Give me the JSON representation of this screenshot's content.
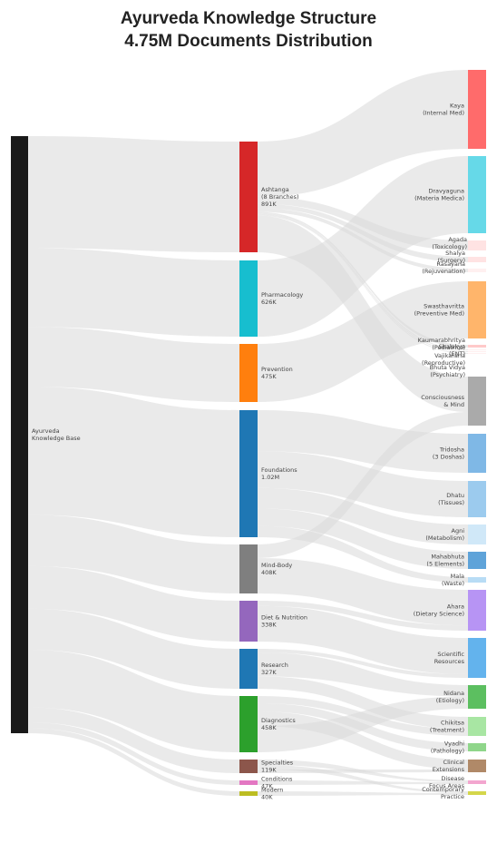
{
  "title": [
    "Ayurveda Knowledge Structure",
    "4.75M Documents Distribution"
  ],
  "root": {
    "label": [
      "Ayurveda",
      "Knowledge Base"
    ],
    "color": "#1a1a1a"
  },
  "categories": [
    {
      "id": "ashtanga",
      "label": [
        "Ashtanga",
        "(8 Branches)",
        "891K"
      ],
      "value": 891,
      "color": "#d62728"
    },
    {
      "id": "pharmacology",
      "label": [
        "Pharmacology",
        "626K"
      ],
      "value": 626,
      "color": "#17becf"
    },
    {
      "id": "prevention",
      "label": [
        "Prevention",
        "475K"
      ],
      "value": 475,
      "color": "#ff7f0e"
    },
    {
      "id": "foundations",
      "label": [
        "Foundations",
        "1.02M"
      ],
      "value": 1020,
      "color": "#1f77b4"
    },
    {
      "id": "mindbody",
      "label": [
        "Mind-Body",
        "408K"
      ],
      "value": 408,
      "color": "#7f7f7f"
    },
    {
      "id": "diet",
      "label": [
        "Diet & Nutrition",
        "338K"
      ],
      "value": 338,
      "color": "#9467bd"
    },
    {
      "id": "research",
      "label": [
        "Research",
        "327K"
      ],
      "value": 327,
      "color": "#1f77b4"
    },
    {
      "id": "diagnostics",
      "label": [
        "Diagnostics",
        "458K"
      ],
      "value": 458,
      "color": "#2ca02c"
    },
    {
      "id": "specialties",
      "label": [
        "Specialties",
        "119K"
      ],
      "value": 119,
      "color": "#8c564b"
    },
    {
      "id": "conditions",
      "label": [
        "Conditions",
        "47K"
      ],
      "value": 47,
      "color": "#e377c2"
    },
    {
      "id": "modern",
      "label": [
        "Modern",
        "40K"
      ],
      "value": 40,
      "color": "#bcbd22"
    }
  ],
  "topics": [
    {
      "id": "kaya",
      "label": [
        "Kaya",
        "(Internal Med)"
      ],
      "color": "#ff6b6b"
    },
    {
      "id": "dravyaguna",
      "label": [
        "Dravyaguna",
        "(Materia Medica)"
      ],
      "color": "#66d9e8"
    },
    {
      "id": "agada",
      "label": [
        "Agada",
        "(Toxicology)"
      ],
      "color": "#ffe3e3"
    },
    {
      "id": "shalya",
      "label": [
        "Shalya",
        "(Surgery)"
      ],
      "color": "#ffe3e3"
    },
    {
      "id": "rasayana",
      "label": [
        "Rasayana",
        "(Rejuvenation)"
      ],
      "color": "#fff0f0"
    },
    {
      "id": "swasthavritta",
      "label": [
        "Swasthavritta",
        "(Preventive Med)"
      ],
      "color": "#ffb56b"
    },
    {
      "id": "kaumarabhritya",
      "label": [
        "Kaumarabhritya",
        "(Pediatrics)"
      ],
      "color": "#ffc9c9"
    },
    {
      "id": "shalakya",
      "label": [
        "Shalakya",
        "(ENT)"
      ],
      "color": "#fff0f0"
    },
    {
      "id": "vajikarana",
      "label": [
        "Vajikarana",
        "(Reproductive)"
      ],
      "color": "#fff0f0"
    },
    {
      "id": "bhuta",
      "label": [
        "Bhuta Vidya",
        "(Psychiatry)"
      ],
      "color": "#fff0f0"
    },
    {
      "id": "consciousness",
      "label": [
        "Consciousness",
        "& Mind"
      ],
      "color": "#aaaaaa"
    },
    {
      "id": "tridosha",
      "label": [
        "Tridosha",
        "(3 Doshas)"
      ],
      "color": "#7fb8e6"
    },
    {
      "id": "dhatu",
      "label": [
        "Dhatu",
        "(Tissues)"
      ],
      "color": "#9ccbee"
    },
    {
      "id": "agni",
      "label": [
        "Agni",
        "(Metabolism)"
      ],
      "color": "#d0e8f8"
    },
    {
      "id": "mahabhuta",
      "label": [
        "Mahabhuta",
        "(5 Elements)"
      ],
      "color": "#5ea3d9"
    },
    {
      "id": "mala",
      "label": [
        "Mala",
        "(Waste)"
      ],
      "color": "#b8dcf5"
    },
    {
      "id": "ahara",
      "label": [
        "Ahara",
        "(Dietary Science)"
      ],
      "color": "#b794f4"
    },
    {
      "id": "scientific",
      "label": [
        "Scientific",
        "Resources"
      ],
      "color": "#63b3ed"
    },
    {
      "id": "nidana",
      "label": [
        "Nidana",
        "(Etiology)"
      ],
      "color": "#5cbf60"
    },
    {
      "id": "chikitsa",
      "label": [
        "Chikitsa",
        "(Treatment)"
      ],
      "color": "#a8e6a3"
    },
    {
      "id": "vyadhi",
      "label": [
        "Vyadhi",
        "(Pathology)"
      ],
      "color": "#8fd68a"
    },
    {
      "id": "clinical",
      "label": [
        "Clinical",
        "Extensions"
      ],
      "color": "#b08968"
    },
    {
      "id": "disease",
      "label": [
        "Disease",
        "Focus Areas"
      ],
      "color": "#f3a6cf"
    },
    {
      "id": "contemporary",
      "label": [
        "Contemporary",
        "Practice"
      ],
      "color": "#d4d64a"
    }
  ],
  "flows": [
    {
      "source": "ashtanga",
      "target": "kaya",
      "value": 445
    },
    {
      "source": "ashtanga",
      "target": "agada",
      "value": 56
    },
    {
      "source": "ashtanga",
      "target": "shalya",
      "value": 35
    },
    {
      "source": "ashtanga",
      "target": "rasayana",
      "value": 30
    },
    {
      "source": "ashtanga",
      "target": "kaumarabhritya",
      "value": 12
    },
    {
      "source": "ashtanga",
      "target": "shalakya",
      "value": 8
    },
    {
      "source": "ashtanga",
      "target": "vajikarana",
      "value": 6
    },
    {
      "source": "ashtanga",
      "target": "bhuta",
      "value": 4
    },
    {
      "source": "ashtanga",
      "target": "consciousness",
      "value": 295
    },
    {
      "source": "pharmacology",
      "target": "dravyaguna",
      "value": 626
    },
    {
      "source": "prevention",
      "target": "swasthavritta",
      "value": 475
    },
    {
      "source": "foundations",
      "target": "tridosha",
      "value": 330
    },
    {
      "source": "foundations",
      "target": "dhatu",
      "value": 295
    },
    {
      "source": "foundations",
      "target": "agni",
      "value": 165
    },
    {
      "source": "foundations",
      "target": "mahabhuta",
      "value": 140
    },
    {
      "source": "foundations",
      "target": "mala",
      "value": 90
    },
    {
      "source": "mindbody",
      "target": "consciousness",
      "value": 113
    },
    {
      "source": "mindbody",
      "target": "ahara",
      "value": 295
    },
    {
      "source": "diet",
      "target": "ahara",
      "value": 43
    },
    {
      "source": "diet",
      "target": "scientific",
      "value": 295
    },
    {
      "source": "research",
      "target": "scientific",
      "value": 30
    },
    {
      "source": "research",
      "target": "nidana",
      "value": 195
    },
    {
      "source": "research",
      "target": "chikitsa",
      "value": 102
    },
    {
      "source": "diagnostics",
      "target": "chikitsa",
      "value": 58
    },
    {
      "source": "diagnostics",
      "target": "vyadhi",
      "value": 68
    },
    {
      "source": "diagnostics",
      "target": "clinical",
      "value": 119
    },
    {
      "source": "diagnostics",
      "target": "nidana",
      "value": 213
    },
    {
      "source": "specialties",
      "target": "disease",
      "value": 47
    },
    {
      "source": "specialties",
      "target": "contemporary",
      "value": 40
    },
    {
      "source": "specialties",
      "target": "clinical",
      "value": 32
    },
    {
      "source": "conditions",
      "target": "disease",
      "value": 47
    },
    {
      "source": "modern",
      "target": "contemporary",
      "value": 40
    }
  ]
}
